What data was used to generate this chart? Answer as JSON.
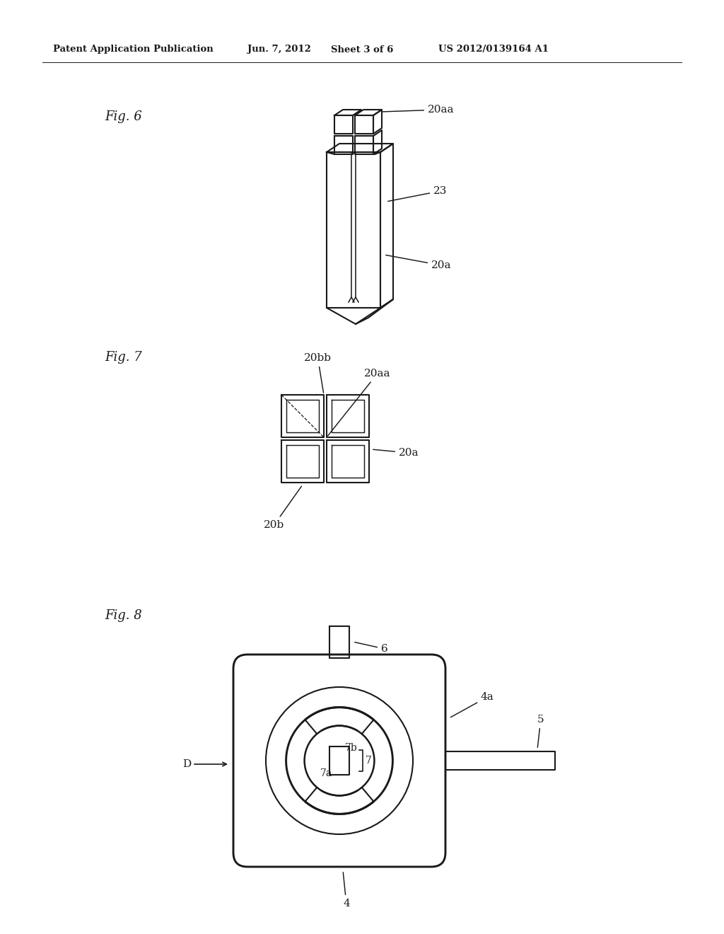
{
  "background_color": "#ffffff",
  "header_text": "Patent Application Publication",
  "header_date": "Jun. 7, 2012",
  "header_sheet": "Sheet 3 of 6",
  "header_patent": "US 2012/0139164 A1",
  "fig6_label": "Fig. 6",
  "fig7_label": "Fig. 7",
  "fig8_label": "Fig. 8",
  "line_color": "#1a1a1a",
  "line_width": 1.5
}
